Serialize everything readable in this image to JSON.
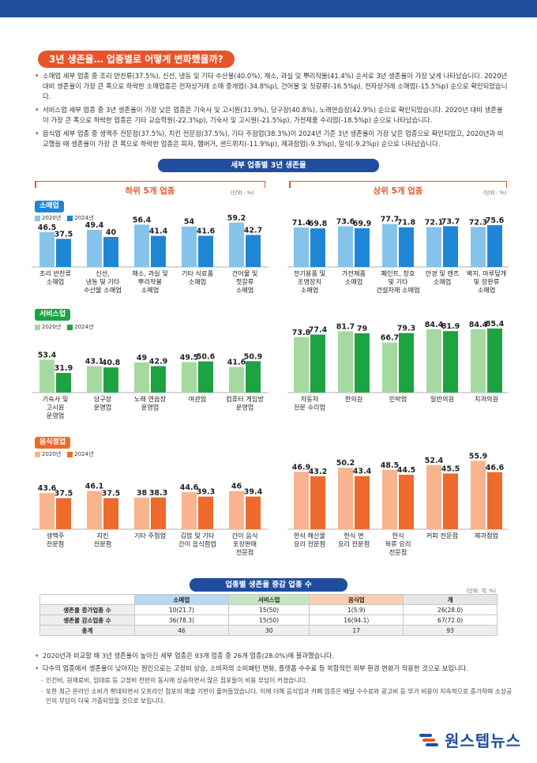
{
  "header": {
    "title": "3년 생존율… 업종별로 어떻게 변화했을까?"
  },
  "bullets": [
    "소매업 세부 업종 중 조리 반찬류(37.5%), 신선, 냉동 및 기타 수산물(40.0%), 채소, 과실 및 뿌리작물(41.4%) 순서로 3년 생존율이 가장 낮게 나타났습니다. 2020년 대비 생존율이 가장 큰 폭으로 하락한 소매업종은 전자상거래 소매 중개업(-34.8%p), 건어물 및 젓갈류(-16.5%p), 전자상거래 소매업(-15.5%p) 순으로 확인되었습니다.",
    "서비스업 세부 업종 중 3년 생존율이 가장 낮은 업종은 기숙사 및 고시원(31.9%), 당구장(40.8%), 노래연습장(42.9%) 순으로 확인되었습니다. 2020년 대비 생존율이 가장 큰 폭으로 하락한 업종은 기타 교습학원(-22.3%p), 기숙사 및 고시원(-21.5%p), 가전제품 수리업(-18.5%p) 순으로 나타났습니다.",
    "음식업 세부 업종 중 생맥주 전문점(37.5%), 치킨 전문점(37.5%), 기타 주점업(38.3%)이 2024년 기준 3년 생존율이 가장 낮은 업종으로 확인되었고, 2020년과 비교했을 때 생존율이 가장 큰 폭으로 하락한 업종은 피자, 햄버거, 샌드위치(-11.9%p), 제과점업(-9.3%p), 일식(-9.2%p) 순으로 나타났습니다."
  ],
  "chart_section_title": "세부 업종별 3년 생존율",
  "lower_title": "하위 5개 업종",
  "upper_title": "상위 5개 업종",
  "unit_label": "(단위 : %)",
  "colors": {
    "retail_2020": "#86c3ea",
    "retail_2024": "#1f86d6",
    "service_2020": "#a6d9a0",
    "service_2024": "#1ea343",
    "food_2020": "#f7b48f",
    "food_2024": "#ee6a2d",
    "accent": "#e8542a",
    "navy": "#1f4e9e"
  },
  "categories": {
    "retail": {
      "label": "소매업",
      "legend": [
        "2020년",
        "2024년"
      ]
    },
    "service": {
      "label": "서비스업",
      "legend": [
        "2020년",
        "2024년"
      ]
    },
    "food": {
      "label": "음식점업",
      "legend": [
        "2020년",
        "2024년"
      ]
    }
  },
  "chart_data": [
    {
      "type": "bar",
      "id": "retail-lower",
      "ylim": [
        0,
        100
      ],
      "categories": [
        "조리 반찬류\n소매업",
        "신선,\n냉동 및 기타\n수산물 소매업",
        "채소, 과실 및\n뿌리작물\n소매업",
        "기타 식료품\n소매업",
        "건어물 및\n젓갈류\n소매업"
      ],
      "series": [
        {
          "name": "2020년",
          "values": [
            46.5,
            49.4,
            56.4,
            54.0,
            59.2
          ]
        },
        {
          "name": "2024년",
          "values": [
            37.5,
            40.0,
            41.4,
            41.6,
            42.7
          ]
        }
      ]
    },
    {
      "type": "bar",
      "id": "retail-upper",
      "ylim": [
        0,
        100
      ],
      "categories": [
        "전기용품 및\n조명장치\n소매업",
        "가전제품\n소매업",
        "페인트, 창호\n및 기타\n건설자재 소매업",
        "안경 및 렌즈\n소매업",
        "벽지, 마루덮개\n및 장판류\n소매업"
      ],
      "series": [
        {
          "name": "2020년",
          "values": [
            71.4,
            73.6,
            77.7,
            72.1,
            72.3
          ]
        },
        {
          "name": "2024년",
          "values": [
            69.8,
            69.9,
            71.8,
            73.7,
            75.6
          ]
        }
      ]
    },
    {
      "type": "bar",
      "id": "service-lower",
      "ylim": [
        0,
        100
      ],
      "categories": [
        "기숙사 및\n고시원\n운영업",
        "당구장\n운영업",
        "노래 연습장\n운영업",
        "여관업",
        "컴퓨터 게임방\n운영업"
      ],
      "series": [
        {
          "name": "2020년",
          "values": [
            53.4,
            43.1,
            49.0,
            49.5,
            41.6
          ]
        },
        {
          "name": "2024년",
          "values": [
            31.9,
            40.8,
            42.9,
            50.6,
            50.9
          ]
        }
      ]
    },
    {
      "type": "bar",
      "id": "service-upper",
      "ylim": [
        0,
        100
      ],
      "categories": [
        "자동차\n전문 수리업",
        "한의원",
        "민박업",
        "일반의원",
        "치과의원"
      ],
      "series": [
        {
          "name": "2020년",
          "values": [
            73.8,
            81.7,
            66.7,
            84.4,
            84.4
          ]
        },
        {
          "name": "2024년",
          "values": [
            77.4,
            79,
            79.3,
            81.9,
            85.4
          ]
        }
      ]
    },
    {
      "type": "bar",
      "id": "food-lower",
      "ylim": [
        0,
        100
      ],
      "categories": [
        "생맥주\n전문점",
        "치킨\n전문점",
        "기타 주점업",
        "김밥 및 기타\n간이 음식점업",
        "간이 음식\n포장판매\n전문점"
      ],
      "series": [
        {
          "name": "2020년",
          "values": [
            43.6,
            46.1,
            38.0,
            44.6,
            46.0
          ]
        },
        {
          "name": "2024년",
          "values": [
            37.5,
            37.5,
            38.3,
            39.3,
            39.4
          ]
        }
      ]
    },
    {
      "type": "bar",
      "id": "food-upper",
      "ylim": [
        0,
        100
      ],
      "categories": [
        "한식 해산물\n요리 전문점",
        "한식 면\n요리 전문점",
        "한식\n육류 요리\n전문점",
        "커피 전문점",
        "제과점업"
      ],
      "series": [
        {
          "name": "2020년",
          "values": [
            46.9,
            50.2,
            48.5,
            52.4,
            55.9
          ]
        },
        {
          "name": "2024년",
          "values": [
            43.2,
            43.4,
            44.5,
            45.5,
            46.6
          ]
        }
      ]
    }
  ],
  "table": {
    "title": "업종별 생존율 증감 업종 수",
    "unit": "(단위: 개, %)",
    "headers": [
      "",
      "소매업",
      "서비스업",
      "음식업",
      "계"
    ],
    "rows": [
      [
        "생존율 증가업종 수",
        "10(21.7)",
        "15(50)",
        "1(5.9)",
        "26(28.0)"
      ],
      [
        "생존율 감소업종 수",
        "36(78.3)",
        "15(50)",
        "16(94.1)",
        "67(72.0)"
      ],
      [
        "총계",
        "46",
        "30",
        "17",
        "93"
      ]
    ]
  },
  "bottom_notes": {
    "b1": "2020년과 비교할 때 3년 생존율이 높아진 세부 업종은 93개 업종 중 26개 업종(28.0%)에 불과했습니다.",
    "b2": "다수의 업종에서 생존율이 낮아지는 원인으로는 고정비 상승, 소비자의 소비패턴 변화, 플랫폼 수수료 등 복합적인 외부 환경 변화가 작용한 것으로 보입니다.",
    "s1": "인건비, 원재료비, 임대료 등 고정비 전반이 동시에 상승하면서 많은 점포들이 비용 부담이 커졌습니다.",
    "s2": "또한 최근 온라인 소비가 확대되면서 오프라인 점포의 매출 기반이 줄어들었습니다. 이에 더해 음식업과 카페 업종은 배달 수수료와 광고비 등 부가 비용이 지속적으로 증가하며 소상공인의 부담이 더욱 가중되었을 것으로 보입니다."
  },
  "logo": {
    "text": "원스텝뉴스"
  }
}
